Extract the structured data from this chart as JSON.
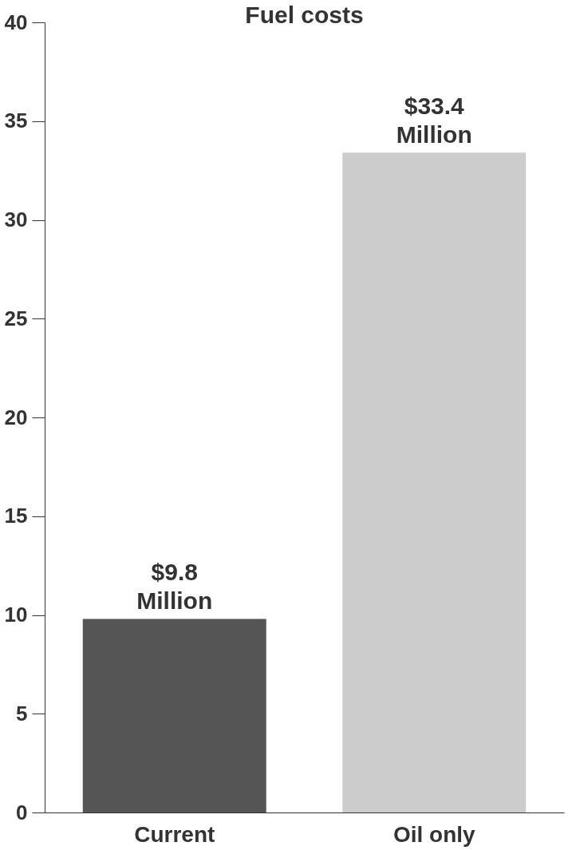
{
  "chart_data": {
    "type": "bar",
    "title": "Fuel costs",
    "categories": [
      "Current",
      "Oil only"
    ],
    "values": [
      9.8,
      33.4
    ],
    "colors": [
      "#555555",
      "#cccccc"
    ],
    "value_labels": [
      "$9.8 Million",
      "$33.4 Million"
    ],
    "ylim": [
      0,
      40
    ],
    "yticks": [
      0,
      5,
      10,
      15,
      20,
      25,
      30,
      35,
      40
    ],
    "grid": false
  }
}
